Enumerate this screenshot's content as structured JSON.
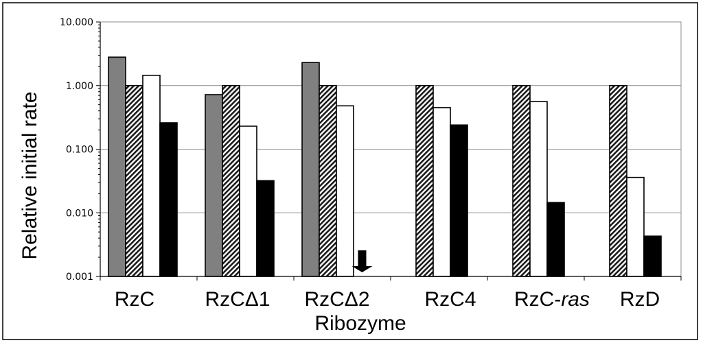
{
  "chart_data": {
    "type": "bar",
    "scale": "log",
    "xlabel": "Ribozyme",
    "ylabel": "Relative initial rate",
    "ylim": [
      0.001,
      10
    ],
    "y_ticks": [
      "10.000",
      "1.000",
      "0.100",
      "0.010",
      "0.001"
    ],
    "y_tick_values": [
      10,
      1,
      0.1,
      0.01,
      0.001
    ],
    "grid": true,
    "categories": [
      {
        "text": "RzC",
        "italic": ""
      },
      {
        "text": "RzCΔ1",
        "italic": ""
      },
      {
        "text": "RzCΔ2",
        "italic": ""
      },
      {
        "text": "RzC4",
        "italic": ""
      },
      {
        "text": "RzC-",
        "italic": "ras"
      },
      {
        "text": "RzD",
        "italic": ""
      }
    ],
    "series": [
      {
        "style": "gray",
        "color": "#808080",
        "values": [
          2.8,
          0.72,
          2.3,
          null,
          null,
          null
        ]
      },
      {
        "style": "hatched",
        "color": "#bfbfbf",
        "values": [
          1.0,
          1.0,
          1.0,
          1.0,
          1.0,
          1.0
        ]
      },
      {
        "style": "white",
        "color": "#ffffff",
        "values": [
          1.45,
          0.23,
          0.48,
          0.45,
          0.56,
          0.036
        ]
      },
      {
        "style": "black",
        "color": "#000000",
        "values": [
          0.26,
          0.032,
          null,
          0.24,
          0.0145,
          0.0043
        ]
      }
    ],
    "annotations": [
      {
        "type": "down-arrow",
        "category_index": 2,
        "series_index": 3,
        "meaning": "below detection limit"
      }
    ]
  }
}
